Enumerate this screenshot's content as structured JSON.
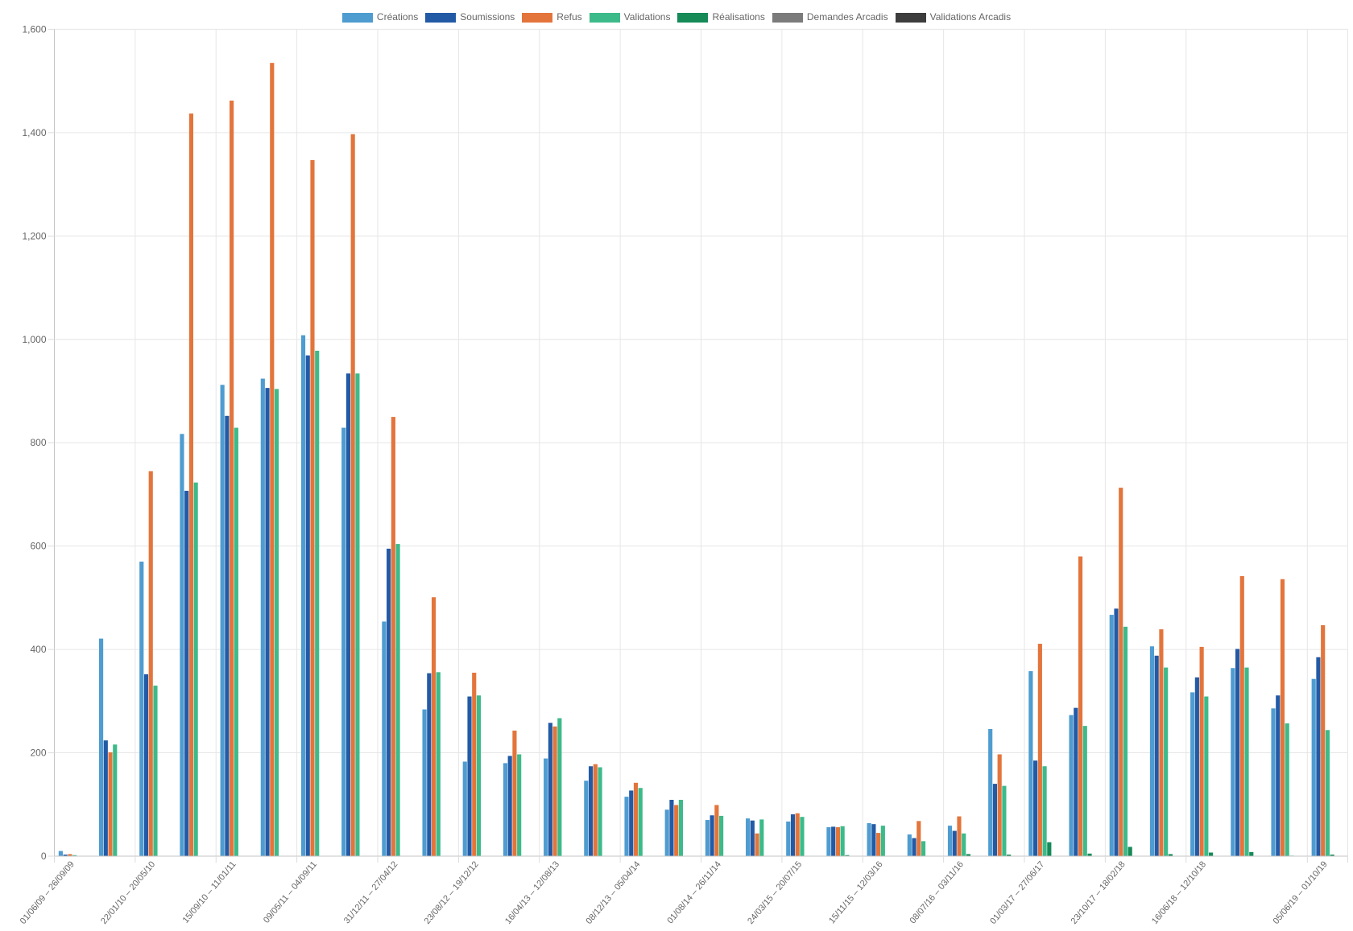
{
  "chart_data": {
    "type": "bar",
    "legend_position": "top",
    "grid": true,
    "ylim": [
      0,
      1600
    ],
    "y_ticks": [
      {
        "value": 0,
        "label": "0"
      },
      {
        "value": 200,
        "label": "200"
      },
      {
        "value": 400,
        "label": "400"
      },
      {
        "value": 600,
        "label": "600"
      },
      {
        "value": 800,
        "label": "800"
      },
      {
        "value": 1000,
        "label": "1,000"
      },
      {
        "value": 1200,
        "label": "1,200"
      },
      {
        "value": 1400,
        "label": "1,400"
      },
      {
        "value": 1600,
        "label": "1,600"
      }
    ],
    "categories": [
      "01/06/09 – 26/09/09",
      "",
      "22/01/10 – 20/05/10",
      "",
      "15/09/10 – 11/01/11",
      "",
      "09/05/11 – 04/09/11",
      "",
      "31/12/11 – 27/04/12",
      "",
      "23/08/12 – 19/12/12",
      "",
      "16/04/13 – 12/08/13",
      "",
      "08/12/13 – 05/04/14",
      "",
      "01/08/14 – 26/11/14",
      "",
      "24/03/15 – 20/07/15",
      "",
      "15/11/15 – 12/03/16",
      "",
      "08/07/16 – 03/11/16",
      "",
      "01/03/17 – 27/06/17",
      "",
      "23/10/17 – 18/02/18",
      "",
      "16/06/18 – 12/10/18",
      "",
      "",
      "05/06/19 – 01/10/19"
    ],
    "series": [
      {
        "name": "Créations",
        "color": "#4e9cd0",
        "values": [
          10,
          421,
          570,
          817,
          912,
          924,
          1008,
          829,
          454,
          284,
          183,
          180,
          189,
          146,
          115,
          90,
          70,
          73,
          67,
          56,
          64,
          42,
          59,
          246,
          358,
          273,
          467,
          406,
          317,
          364,
          286,
          343
        ]
      },
      {
        "name": "Soumissions",
        "color": "#235aa6",
        "values": [
          3,
          224,
          352,
          707,
          852,
          906,
          969,
          934,
          595,
          354,
          309,
          194,
          258,
          174,
          127,
          109,
          79,
          69,
          81,
          57,
          62,
          35,
          49,
          140,
          185,
          287,
          479,
          388,
          346,
          401,
          311,
          385
        ]
      },
      {
        "name": "Refus",
        "color": "#e3753c",
        "values": [
          4,
          201,
          745,
          1437,
          1462,
          1535,
          1347,
          1397,
          850,
          501,
          355,
          243,
          251,
          178,
          142,
          99,
          99,
          44,
          83,
          56,
          45,
          68,
          77,
          197,
          411,
          580,
          713,
          439,
          405,
          542,
          536,
          447
        ]
      },
      {
        "name": "Validations",
        "color": "#3dba89",
        "values": [
          2,
          216,
          330,
          723,
          829,
          904,
          978,
          934,
          604,
          356,
          311,
          197,
          267,
          172,
          132,
          109,
          78,
          71,
          76,
          58,
          59,
          29,
          44,
          136,
          174,
          252,
          444,
          365,
          309,
          365,
          257,
          244
        ]
      },
      {
        "name": "Réalisations",
        "color": "#168a57",
        "values": [
          0,
          0,
          0,
          0,
          0,
          0,
          0,
          0,
          0,
          0,
          0,
          0,
          0,
          0,
          0,
          0,
          0,
          0,
          0,
          2,
          0,
          0,
          4,
          3,
          27,
          5,
          18,
          4,
          7,
          8,
          1,
          3
        ]
      },
      {
        "name": "Demandes Arcadis",
        "color": "#7b7b7b",
        "values": [
          0,
          0,
          0,
          0,
          0,
          0,
          0,
          0,
          0,
          0,
          0,
          0,
          0,
          0,
          0,
          0,
          0,
          0,
          0,
          0,
          0,
          0,
          0,
          0,
          0,
          0,
          0,
          0,
          0,
          0,
          0,
          0
        ]
      },
      {
        "name": "Validations Arcadis",
        "color": "#3d3d3d",
        "values": [
          0,
          0,
          0,
          0,
          0,
          0,
          0,
          0,
          0,
          0,
          0,
          0,
          0,
          0,
          0,
          0,
          0,
          0,
          0,
          0,
          0,
          0,
          0,
          0,
          0,
          0,
          0,
          0,
          0,
          0,
          0,
          0
        ]
      }
    ]
  }
}
